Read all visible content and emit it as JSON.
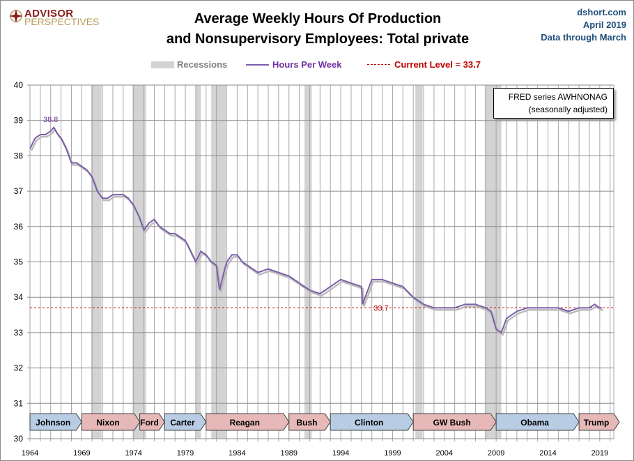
{
  "logo": {
    "line1": "ADVISOR",
    "line2": "PERSPECTIVES"
  },
  "title": {
    "line1": "Average Weekly Hours Of Production",
    "line2": "and Nonsupervisory Employees: Total private"
  },
  "source": {
    "site": "dshort.com",
    "date": "April 2019",
    "note": "Data through March"
  },
  "legend": {
    "recessions": "Recessions",
    "series": "Hours Per Week",
    "current": "Current Level = 33.7"
  },
  "fred_box": {
    "line1": "FRED series  AWHNONAG",
    "line2": "(seasonally adjusted)"
  },
  "colors": {
    "series": "#7b5ea7",
    "current": "#c00000",
    "recession": "#d3d3d3",
    "dem": "#b8cce4",
    "rep": "#e6b8b7"
  },
  "chart_data": {
    "type": "line",
    "xlim": [
      1964,
      2021.5
    ],
    "ylim": [
      30,
      40
    ],
    "yticks": [
      30,
      31,
      32,
      33,
      34,
      35,
      36,
      37,
      38,
      39,
      40
    ],
    "xticks": [
      "1964",
      "1969",
      "1974",
      "1979",
      "1984",
      "1989",
      "1994",
      "1999",
      "2004",
      "2009",
      "2014",
      "2019"
    ],
    "grid": true,
    "peak_label": {
      "x": 1966.2,
      "y": 38.8,
      "text": "38.8"
    },
    "current_level": {
      "value": 33.7,
      "label": "33.7"
    },
    "series": [
      {
        "name": "Hours Per Week",
        "x": [
          1964,
          1964.5,
          1965,
          1965.5,
          1966,
          1966.3,
          1966.7,
          1967,
          1967.5,
          1968,
          1968.5,
          1969,
          1969.5,
          1970,
          1970.5,
          1971,
          1971.5,
          1972,
          1972.5,
          1973,
          1973.5,
          1974,
          1974.5,
          1975,
          1975.5,
          1976,
          1976.5,
          1977,
          1977.5,
          1978,
          1978.5,
          1979,
          1979.5,
          1980,
          1980.5,
          1981,
          1981.5,
          1982,
          1982.3,
          1982.8,
          1983,
          1983.5,
          1984,
          1984.5,
          1985,
          1985.5,
          1986,
          1987,
          1988,
          1989,
          1990,
          1990.5,
          1991,
          1992,
          1993,
          1994,
          1995,
          1996,
          1996.1,
          1997,
          1998,
          1999,
          2000,
          2001,
          2001.5,
          2002,
          2003,
          2004,
          2005,
          2006,
          2007,
          2008,
          2008.5,
          2009,
          2009.5,
          2010,
          2011,
          2012,
          2013,
          2014,
          2015,
          2016,
          2017,
          2018,
          2018.5,
          2019,
          2019.2
        ],
        "y": [
          38.2,
          38.5,
          38.6,
          38.6,
          38.7,
          38.8,
          38.6,
          38.5,
          38.2,
          37.8,
          37.8,
          37.7,
          37.6,
          37.4,
          37.0,
          36.8,
          36.8,
          36.9,
          36.9,
          36.9,
          36.8,
          36.6,
          36.3,
          35.9,
          36.1,
          36.2,
          36.0,
          35.9,
          35.8,
          35.8,
          35.7,
          35.6,
          35.3,
          35.0,
          35.3,
          35.2,
          35.0,
          34.9,
          34.2,
          34.8,
          35.0,
          35.2,
          35.2,
          35.0,
          34.9,
          34.8,
          34.7,
          34.8,
          34.7,
          34.6,
          34.4,
          34.3,
          34.2,
          34.1,
          34.3,
          34.5,
          34.4,
          34.3,
          33.8,
          34.5,
          34.5,
          34.4,
          34.3,
          34.0,
          33.9,
          33.8,
          33.7,
          33.7,
          33.7,
          33.8,
          33.8,
          33.7,
          33.6,
          33.1,
          33.0,
          33.4,
          33.6,
          33.7,
          33.7,
          33.7,
          33.7,
          33.6,
          33.7,
          33.7,
          33.8,
          33.7,
          33.7
        ]
      }
    ],
    "recessions": [
      [
        1969.9,
        1970.9
      ],
      [
        1973.9,
        1975.2
      ],
      [
        1980.0,
        1980.5
      ],
      [
        1981.5,
        1982.9
      ],
      [
        1990.5,
        1991.2
      ],
      [
        2001.2,
        2001.9
      ],
      [
        2007.9,
        2009.5
      ]
    ],
    "presidents": [
      {
        "name": "Johnson",
        "start": 1964,
        "end": 1969,
        "party": "dem"
      },
      {
        "name": "Nixon",
        "start": 1969,
        "end": 1974.6,
        "party": "rep"
      },
      {
        "name": "Ford",
        "start": 1974.6,
        "end": 1977,
        "party": "rep"
      },
      {
        "name": "Carter",
        "start": 1977,
        "end": 1981,
        "party": "dem"
      },
      {
        "name": "Reagan",
        "start": 1981,
        "end": 1989,
        "party": "rep"
      },
      {
        "name": "Bush",
        "start": 1989,
        "end": 1993,
        "party": "rep"
      },
      {
        "name": "Clinton",
        "start": 1993,
        "end": 2001,
        "party": "dem"
      },
      {
        "name": "GW Bush",
        "start": 2001,
        "end": 2009,
        "party": "rep"
      },
      {
        "name": "Obama",
        "start": 2009,
        "end": 2017,
        "party": "dem"
      },
      {
        "name": "Trump",
        "start": 2017,
        "end": 2021,
        "party": "rep"
      }
    ]
  }
}
